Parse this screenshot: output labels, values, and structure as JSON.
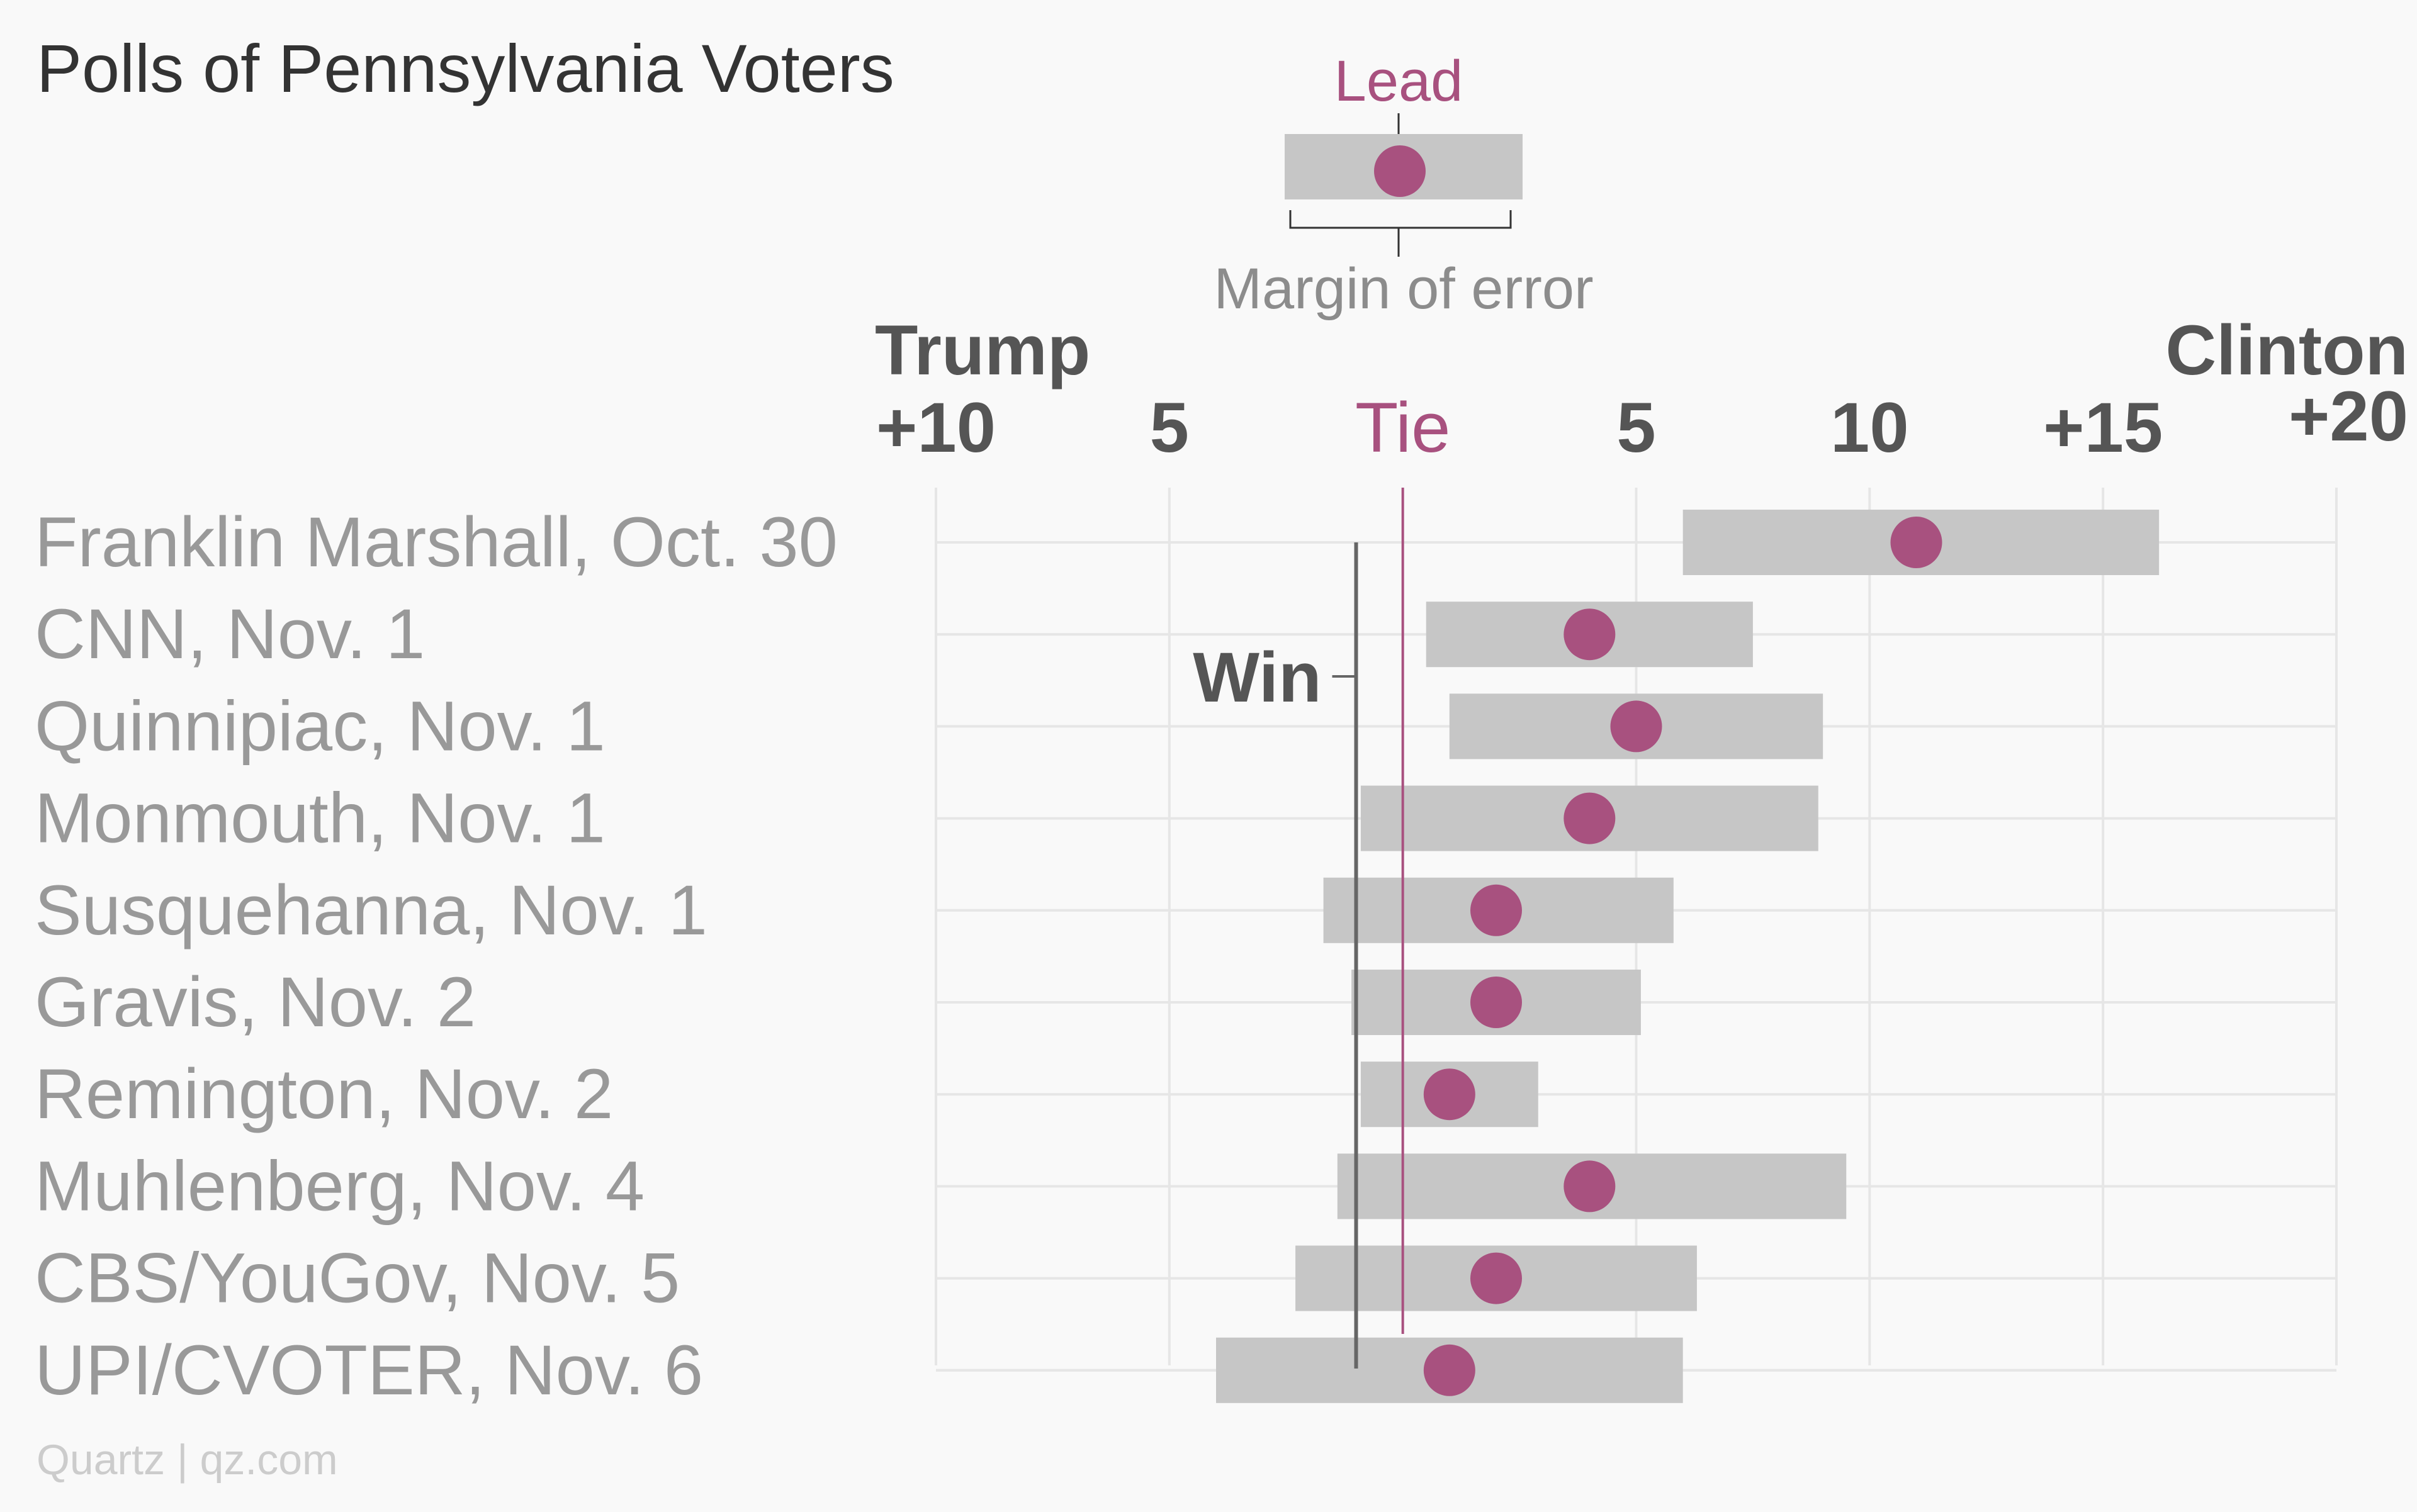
{
  "chart_data": {
    "type": "range-dot",
    "title": "Polls of Pennsylvania Voters",
    "legend": {
      "lead_label": "Lead",
      "margin_label": "Margin of error"
    },
    "axis": {
      "left_label": "Trump",
      "right_label": "Clinton",
      "ticks": [
        {
          "value": -10,
          "label": "+10"
        },
        {
          "value": -5,
          "label": "5"
        },
        {
          "value": 0,
          "label": "Tie"
        },
        {
          "value": 5,
          "label": "5"
        },
        {
          "value": 10,
          "label": "10"
        },
        {
          "value": 15,
          "label": "+15"
        },
        {
          "value": 20,
          "label": "+20"
        }
      ],
      "xlim": [
        -10,
        20
      ],
      "grid": true
    },
    "win_threshold": {
      "label": "Win",
      "value": -1
    },
    "polls": [
      {
        "label": "Franklin Marshall, Oct. 30",
        "lead": 11,
        "low": 6,
        "high": 16.2
      },
      {
        "label": "CNN, Nov. 1",
        "lead": 4,
        "low": 0.5,
        "high": 7.5
      },
      {
        "label": "Quinnipiac, Nov. 1",
        "lead": 5,
        "low": 1,
        "high": 9
      },
      {
        "label": "Monmouth, Nov. 1",
        "lead": 4,
        "low": -0.9,
        "high": 8.9
      },
      {
        "label": "Susquehanna, Nov. 1",
        "lead": 2,
        "low": -1.7,
        "high": 5.8
      },
      {
        "label": "Gravis, Nov. 2",
        "lead": 2,
        "low": -1.1,
        "high": 5.1
      },
      {
        "label": "Remington, Nov. 2",
        "lead": 1,
        "low": -0.9,
        "high": 2.9
      },
      {
        "label": "Muhlenberg, Nov. 4",
        "lead": 4,
        "low": -1.4,
        "high": 9.5
      },
      {
        "label": "CBS/YouGov, Nov. 5",
        "lead": 2,
        "low": -2.3,
        "high": 6.3
      },
      {
        "label": "UPI/CVOTER, Nov. 6",
        "lead": 1,
        "low": -4,
        "high": 6
      }
    ],
    "colors": {
      "accent": "#a8517f",
      "bar": "#c6c6c6",
      "grid": "#e6e6e6",
      "axis_text": "#555555",
      "row_text": "#999999",
      "title_text": "#333333",
      "source_text": "#cccccc",
      "win_line": "#666666"
    }
  },
  "source": "Quartz | qz.com"
}
